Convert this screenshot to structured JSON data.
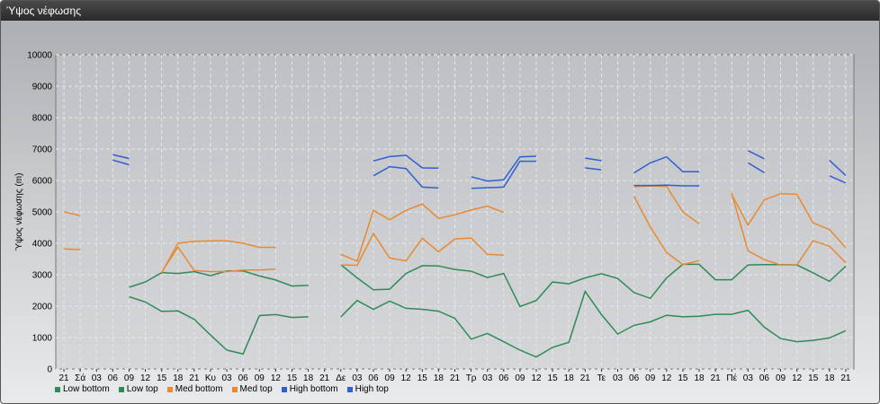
{
  "window": {
    "title": "Ύψος νέφωσης"
  },
  "chart_data": {
    "type": "line",
    "ylabel": "Ύψος νέφωσης (m)",
    "xlabel": "",
    "ylim": [
      0,
      10000
    ],
    "yticks": [
      0,
      1000,
      2000,
      3000,
      4000,
      5000,
      6000,
      7000,
      8000,
      9000,
      10000
    ],
    "grid": true,
    "legend_position": "bottom-left",
    "categories": [
      "21",
      "Σά",
      "03",
      "06",
      "09",
      "12",
      "15",
      "18",
      "21",
      "Κυ",
      "03",
      "06",
      "09",
      "12",
      "15",
      "18",
      "21",
      "Δε",
      "03",
      "06",
      "09",
      "12",
      "15",
      "18",
      "21",
      "Τρ",
      "03",
      "06",
      "09",
      "12",
      "15",
      "18",
      "21",
      "Τε",
      "03",
      "06",
      "09",
      "12",
      "15",
      "18",
      "21",
      "Πέ",
      "03",
      "06",
      "09",
      "12",
      "15",
      "18",
      "21"
    ],
    "series": [
      {
        "name": "Low bottom",
        "color": "#2e8b57",
        "values": [
          null,
          null,
          null,
          null,
          2300,
          2130,
          1830,
          1850,
          1580,
          1080,
          600,
          480,
          1700,
          1730,
          1640,
          1660,
          null,
          1660,
          2180,
          1900,
          2160,
          1930,
          1900,
          1840,
          1610,
          950,
          1130,
          870,
          600,
          380,
          690,
          850,
          2470,
          1730,
          1110,
          1390,
          1500,
          1710,
          1660,
          1680,
          1740,
          1740,
          1870,
          1330,
          970,
          870,
          910,
          990,
          1220
        ]
      },
      {
        "name": "Low top",
        "color": "#2e8b57",
        "values": [
          null,
          null,
          null,
          null,
          2600,
          2770,
          3070,
          3040,
          3100,
          2970,
          3120,
          3120,
          2960,
          2830,
          2640,
          2660,
          null,
          3320,
          2900,
          2520,
          2540,
          3040,
          3290,
          3280,
          3170,
          3110,
          2910,
          3040,
          1990,
          2180,
          2770,
          2710,
          2900,
          3030,
          2880,
          2430,
          2250,
          2900,
          3330,
          3330,
          2840,
          2840,
          3310,
          3320,
          3320,
          3310,
          3060,
          2790,
          3270
        ]
      },
      {
        "name": "Med bottom",
        "color": "#e88a32",
        "values": [
          3820,
          3800,
          null,
          null,
          null,
          null,
          3090,
          3880,
          3130,
          3100,
          3100,
          3150,
          3150,
          3180,
          null,
          null,
          null,
          3310,
          3300,
          4310,
          3530,
          3440,
          4160,
          3730,
          4140,
          4170,
          3650,
          3620,
          null,
          null,
          null,
          null,
          null,
          null,
          null,
          5500,
          4520,
          3710,
          3320,
          3450,
          null,
          5590,
          3760,
          3480,
          3310,
          3310,
          4080,
          3910,
          3380
        ]
      },
      {
        "name": "Med top",
        "color": "#e88a32",
        "values": [
          5000,
          4880,
          null,
          null,
          null,
          null,
          3060,
          4000,
          4060,
          4080,
          4080,
          4000,
          3870,
          3870,
          null,
          null,
          null,
          3650,
          3430,
          5050,
          4750,
          5050,
          5250,
          4790,
          4910,
          5060,
          5180,
          4980,
          null,
          null,
          null,
          null,
          null,
          null,
          null,
          5800,
          5830,
          5810,
          5000,
          4620,
          null,
          5550,
          4580,
          5380,
          5580,
          5560,
          4650,
          4440,
          3860
        ]
      },
      {
        "name": "High bottom",
        "color": "#2f5fd0",
        "values": [
          null,
          null,
          null,
          6650,
          6500,
          null,
          null,
          null,
          null,
          null,
          null,
          null,
          null,
          null,
          null,
          null,
          null,
          null,
          null,
          6150,
          6440,
          6380,
          5790,
          5760,
          null,
          5750,
          5770,
          5790,
          6610,
          6610,
          null,
          null,
          6400,
          6340,
          null,
          5840,
          5840,
          5850,
          5830,
          5830,
          null,
          null,
          6560,
          6250,
          null,
          null,
          null,
          6150,
          5920
        ]
      },
      {
        "name": "High top",
        "color": "#2f5fd0",
        "values": [
          null,
          null,
          null,
          6820,
          6700,
          null,
          null,
          null,
          null,
          null,
          null,
          null,
          null,
          null,
          null,
          null,
          null,
          null,
          null,
          6620,
          6760,
          6800,
          6400,
          6390,
          null,
          6120,
          5980,
          6020,
          6750,
          6770,
          null,
          null,
          6710,
          6630,
          null,
          6240,
          6560,
          6750,
          6280,
          6280,
          null,
          null,
          6950,
          6690,
          null,
          null,
          null,
          6640,
          6160
        ]
      }
    ]
  }
}
